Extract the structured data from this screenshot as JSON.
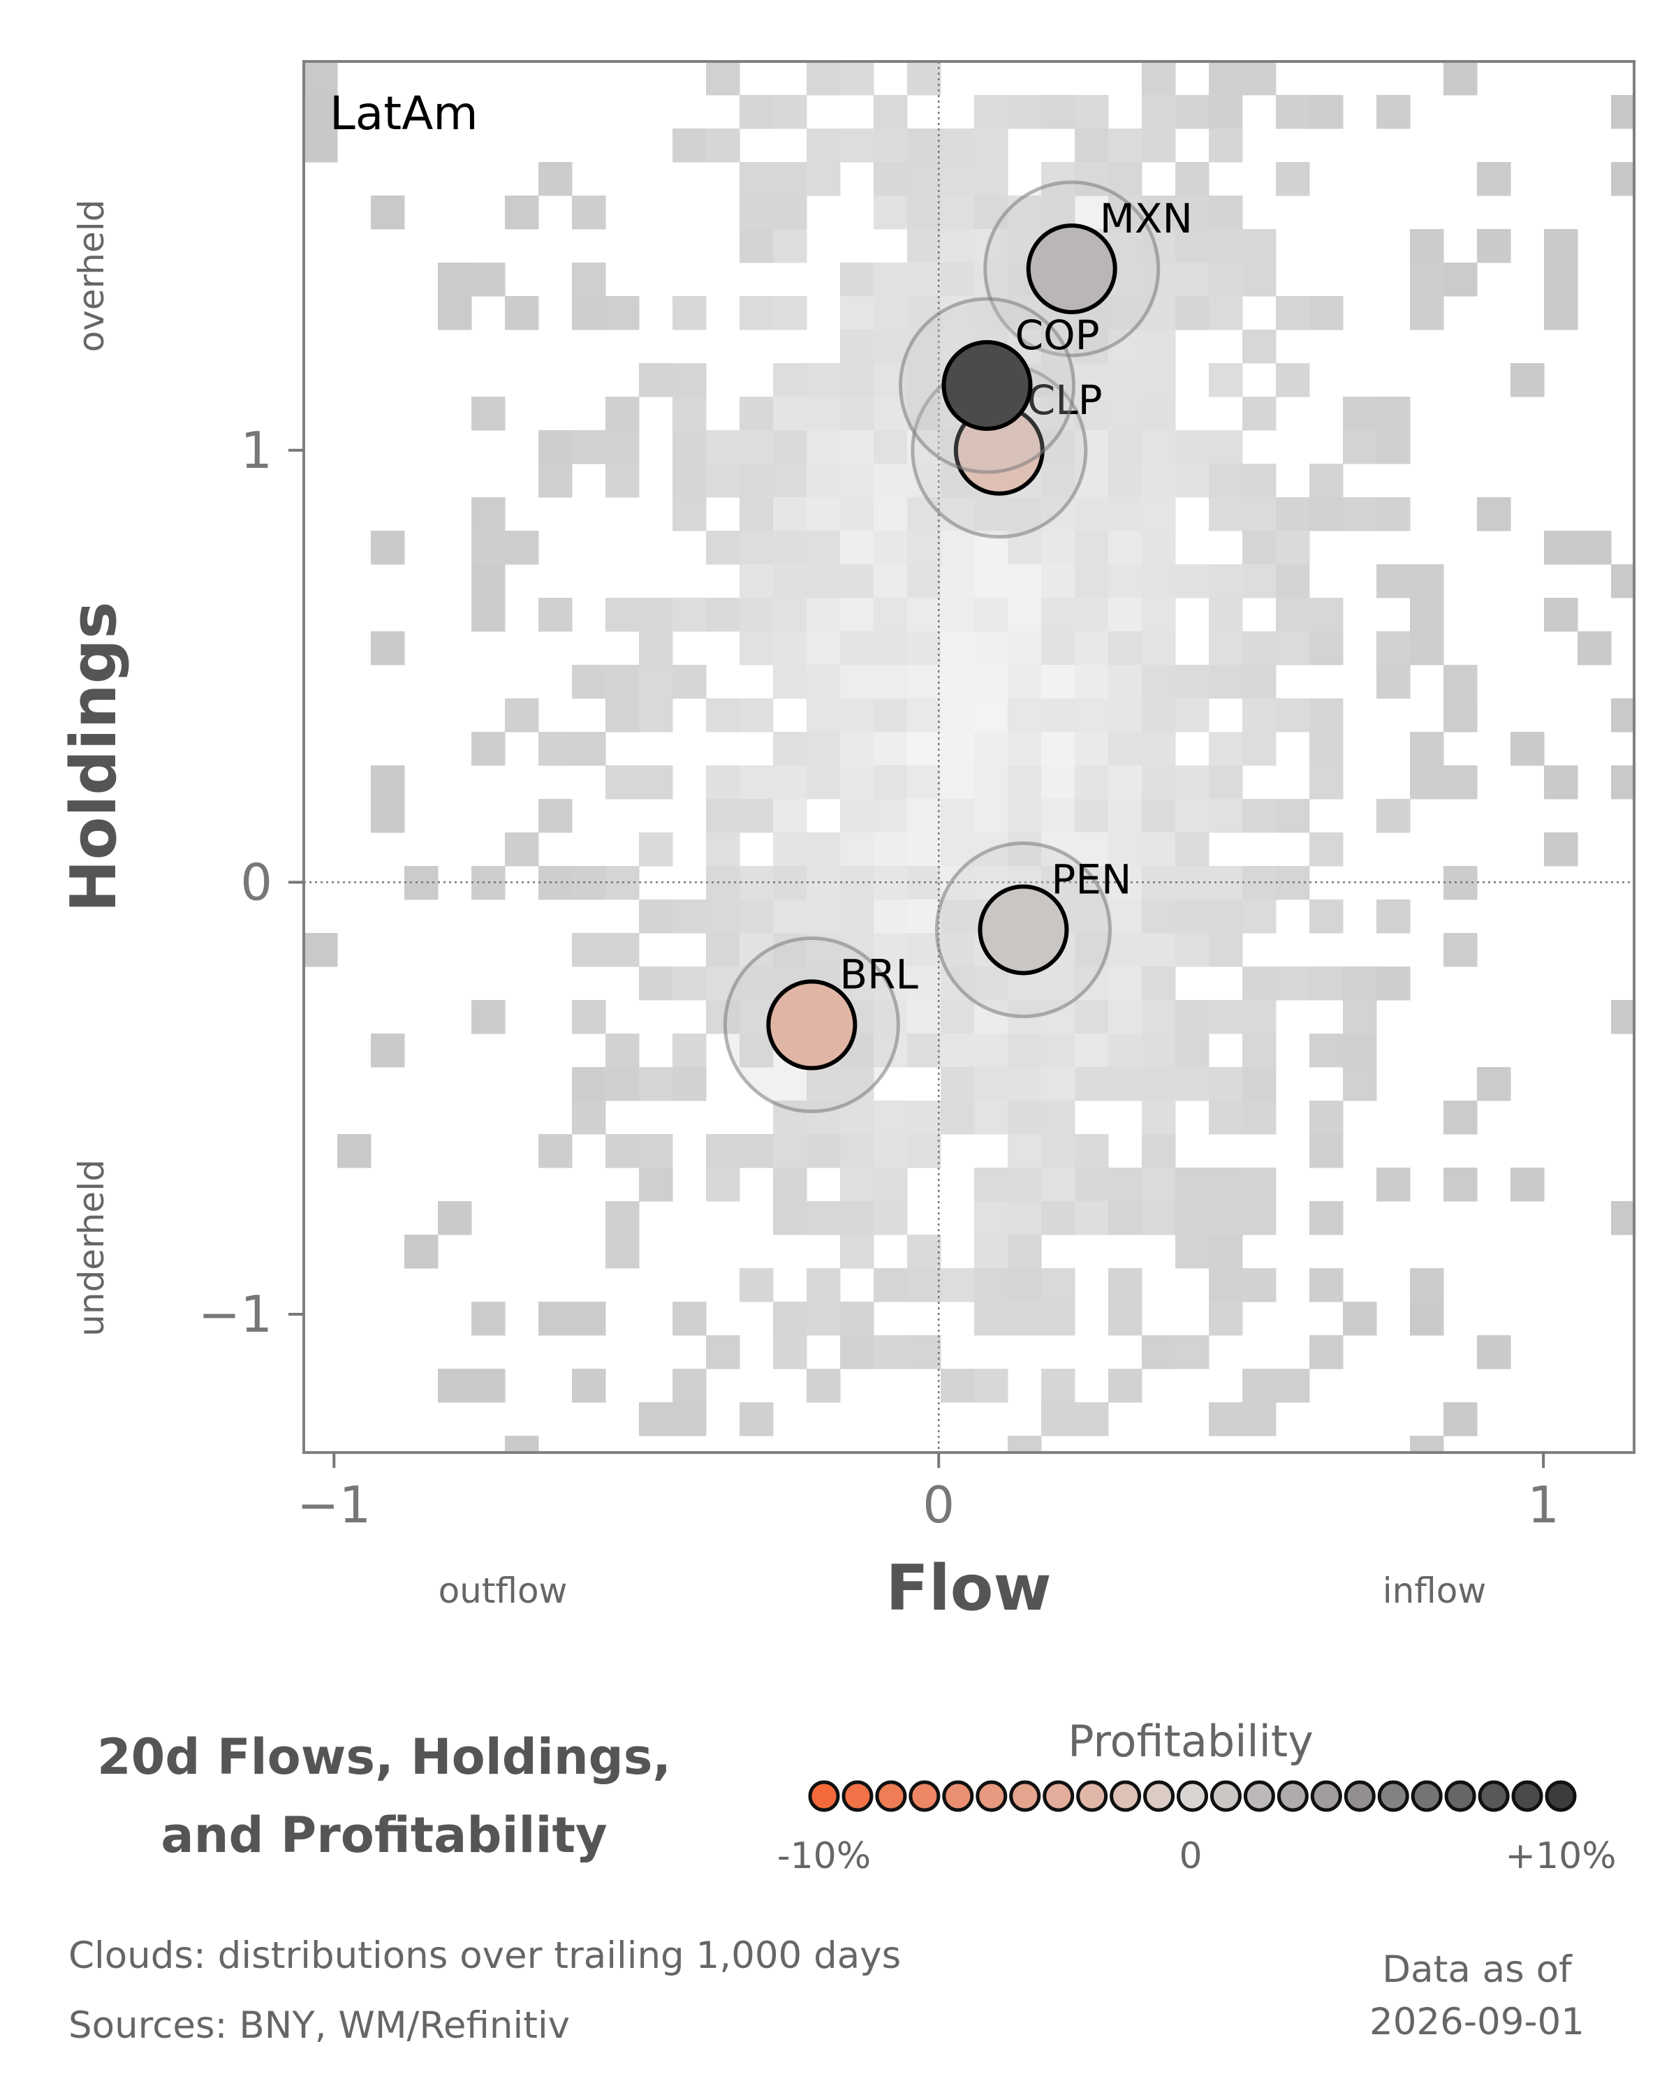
{
  "chart_data": {
    "type": "scatter",
    "panel_label": "LatAm",
    "xlabel": "Flow",
    "ylabel": "Holdings",
    "xlim": [
      -1.05,
      1.15
    ],
    "ylim": [
      -1.32,
      1.9
    ],
    "xticks": [
      {
        "value": -1,
        "label": "−1"
      },
      {
        "value": 0,
        "label": "0"
      },
      {
        "value": 1,
        "label": "1"
      }
    ],
    "yticks": [
      {
        "value": -1,
        "label": "−1"
      },
      {
        "value": 0,
        "label": "0"
      },
      {
        "value": 1,
        "label": "1"
      }
    ],
    "x_side_labels": {
      "left": "outflow",
      "right": "inflow"
    },
    "y_side_labels": {
      "top": "overheld",
      "bottom": "underheld"
    },
    "reference_lines": {
      "x": 0,
      "y": 0
    },
    "background": "2D histogram cloud (grayscale) of trailing distributions",
    "points": [
      {
        "label": "MXN",
        "flow": 0.22,
        "holdings": 1.42,
        "profitability": 0.02
      },
      {
        "label": "COP",
        "flow": 0.08,
        "holdings": 1.15,
        "profitability": 0.09
      },
      {
        "label": "CLP",
        "flow": 0.1,
        "holdings": 1.0,
        "profitability": -0.02
      },
      {
        "label": "PEN",
        "flow": 0.14,
        "holdings": -0.11,
        "profitability": 0.01
      },
      {
        "label": "BRL",
        "flow": -0.21,
        "holdings": -0.33,
        "profitability": -0.03
      }
    ],
    "profitability_colors": {
      "low": "#f4693a",
      "mid": "#d9d5d3",
      "high": "#3c3c3c"
    }
  },
  "title_line1": "20d Flows, Holdings,",
  "title_line2": "and Profitability",
  "legend": {
    "title": "Profitability",
    "min_label": "-10%",
    "mid_label": "0",
    "max_label": "+10%"
  },
  "footer": {
    "clouds": "Clouds:  distributions over trailing 1,000 days",
    "sources": "Sources:  BNY, WM/Refinitiv",
    "asof_line1": "Data as of",
    "asof_line2": "2026-09-01"
  }
}
